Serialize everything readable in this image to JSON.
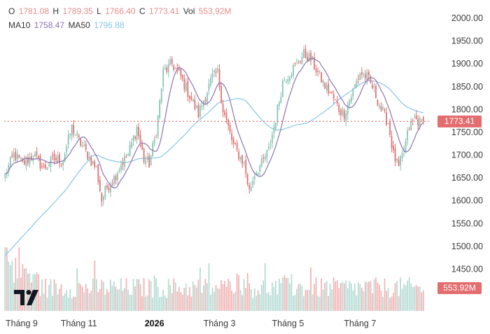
{
  "legend": {
    "o_label": "O",
    "o_value": "1781.08",
    "h_label": "H",
    "h_value": "1789.35",
    "l_label": "L",
    "l_value": "1766.40",
    "c_label": "C",
    "c_value": "1773.41",
    "vol_label": "Vol",
    "vol_value": "553,92M",
    "ma10_label": "MA10",
    "ma10_value": "1758.47",
    "ma50_label": "MA50",
    "ma50_value": "1796.88"
  },
  "price_tag": "1773.41",
  "volume_tag": "553.92M",
  "colors": {
    "up": "#86c2b4",
    "down": "#e36d6f",
    "volume_up": "#b5dbd3",
    "volume_down": "#f2b3b4",
    "ma10": "#8a74b3",
    "ma50": "#86c6e6",
    "last_price_line": "#e05c4a",
    "tag_price": "#e36d6f",
    "tag_volume": "#e36d6f"
  },
  "chart_data": {
    "type": "candlestick",
    "y_axis_ticks": [
      1450,
      1500,
      1550,
      1600,
      1650,
      1700,
      1750,
      1800,
      1850,
      1900,
      1950,
      2000
    ],
    "ylim": [
      1420,
      2015
    ],
    "x_tick_labels": [
      "Tháng 9",
      "Tháng 11",
      "2026",
      "Tháng 3",
      "Tháng 5",
      "Tháng 7"
    ],
    "x_tick_bar_index": [
      0,
      42,
      85,
      122,
      161,
      202
    ],
    "last_price": 1773.41,
    "series": [
      {
        "name": "MA10",
        "values_close_avg_window": 10
      },
      {
        "name": "MA50",
        "values_close_avg_window": 50
      }
    ],
    "close_keypoints": [
      [
        0,
        1655
      ],
      [
        5,
        1700
      ],
      [
        10,
        1680
      ],
      [
        16,
        1700
      ],
      [
        22,
        1670
      ],
      [
        27,
        1690
      ],
      [
        33,
        1690
      ],
      [
        38,
        1760
      ],
      [
        42,
        1730
      ],
      [
        47,
        1700
      ],
      [
        52,
        1670
      ],
      [
        55,
        1600
      ],
      [
        58,
        1630
      ],
      [
        62,
        1650
      ],
      [
        66,
        1680
      ],
      [
        70,
        1700
      ],
      [
        75,
        1760
      ],
      [
        79,
        1690
      ],
      [
        82,
        1680
      ],
      [
        86,
        1750
      ],
      [
        90,
        1880
      ],
      [
        95,
        1900
      ],
      [
        100,
        1870
      ],
      [
        105,
        1830
      ],
      [
        110,
        1790
      ],
      [
        114,
        1830
      ],
      [
        118,
        1870
      ],
      [
        121,
        1880
      ],
      [
        124,
        1800
      ],
      [
        127,
        1760
      ],
      [
        130,
        1720
      ],
      [
        133,
        1700
      ],
      [
        136,
        1680
      ],
      [
        139,
        1620
      ],
      [
        142,
        1660
      ],
      [
        146,
        1680
      ],
      [
        150,
        1710
      ],
      [
        154,
        1780
      ],
      [
        158,
        1860
      ],
      [
        162,
        1880
      ],
      [
        166,
        1900
      ],
      [
        170,
        1920
      ],
      [
        174,
        1910
      ],
      [
        178,
        1880
      ],
      [
        182,
        1850
      ],
      [
        186,
        1830
      ],
      [
        190,
        1800
      ],
      [
        193,
        1790
      ],
      [
        196,
        1820
      ],
      [
        199,
        1850
      ],
      [
        202,
        1880
      ],
      [
        206,
        1870
      ],
      [
        210,
        1840
      ],
      [
        214,
        1800
      ],
      [
        218,
        1770
      ],
      [
        221,
        1700
      ],
      [
        224,
        1670
      ],
      [
        227,
        1710
      ],
      [
        230,
        1760
      ],
      [
        233,
        1780
      ],
      [
        236,
        1770
      ],
      [
        238,
        1773.41
      ]
    ]
  }
}
